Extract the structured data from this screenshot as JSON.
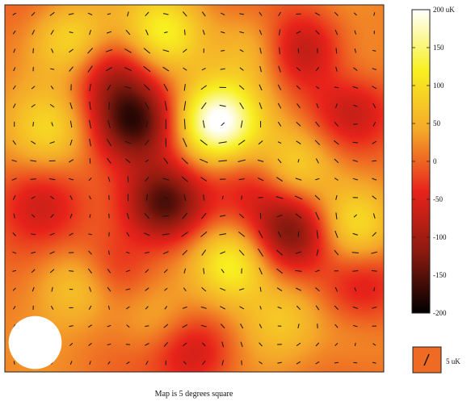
{
  "chart_data": {
    "type": "heatmap",
    "title": "",
    "caption": "Map is 5 degrees square",
    "colorbar": {
      "min": -200,
      "max": 200,
      "unit": "uK",
      "ticks": [
        {
          "value": 200,
          "label": "200 uK"
        },
        {
          "value": 150,
          "label": "150"
        },
        {
          "value": 100,
          "label": "100"
        },
        {
          "value": 50,
          "label": "50"
        },
        {
          "value": 0,
          "label": "0"
        },
        {
          "value": -50,
          "label": "-50"
        },
        {
          "value": -100,
          "label": "-100"
        },
        {
          "value": -150,
          "label": "-150"
        },
        {
          "value": -200,
          "label": "-200"
        }
      ],
      "colors": [
        "#000000",
        "#8a1a0f",
        "#e8231b",
        "#f4a72a",
        "#f8f020",
        "#ffffff"
      ]
    },
    "map_extent_deg": 5,
    "beam": {
      "x": 0.4,
      "y": 0.4,
      "diameter": 0.7
    },
    "polarization_scale": {
      "label": "5 uK",
      "vector_length_uK": 5
    },
    "spots": [
      {
        "x": 0.9,
        "y": 4.5,
        "value": 95
      },
      {
        "x": 2.1,
        "y": 4.6,
        "value": 110
      },
      {
        "x": 3.3,
        "y": 4.4,
        "value": 60
      },
      {
        "x": 4.6,
        "y": 4.0,
        "value": 40
      },
      {
        "x": 0.6,
        "y": 3.3,
        "value": 70
      },
      {
        "x": 2.8,
        "y": 3.4,
        "value": 190
      },
      {
        "x": 1.7,
        "y": 3.4,
        "value": -160
      },
      {
        "x": 3.8,
        "y": 2.8,
        "value": 90
      },
      {
        "x": 4.6,
        "y": 2.0,
        "value": 85
      },
      {
        "x": 2.1,
        "y": 2.3,
        "value": -175
      },
      {
        "x": 3.8,
        "y": 1.9,
        "value": -150
      },
      {
        "x": 3.0,
        "y": 1.5,
        "value": 130
      },
      {
        "x": 1.0,
        "y": 1.2,
        "value": 80
      },
      {
        "x": 2.0,
        "y": 0.7,
        "value": 50
      },
      {
        "x": 3.7,
        "y": 0.7,
        "value": 60
      },
      {
        "x": 4.6,
        "y": 0.5,
        "value": 30
      },
      {
        "x": 1.4,
        "y": 4.1,
        "value": -90
      },
      {
        "x": 3.9,
        "y": 4.4,
        "value": -100
      },
      {
        "x": 4.6,
        "y": 3.6,
        "value": -80
      },
      {
        "x": 0.5,
        "y": 2.3,
        "value": -60
      },
      {
        "x": 2.5,
        "y": 0.3,
        "value": -80
      },
      {
        "x": 1.4,
        "y": 1.4,
        "value": -70
      },
      {
        "x": 4.7,
        "y": 1.2,
        "value": -70
      },
      {
        "x": 3.3,
        "y": 2.6,
        "value": -60
      }
    ]
  }
}
